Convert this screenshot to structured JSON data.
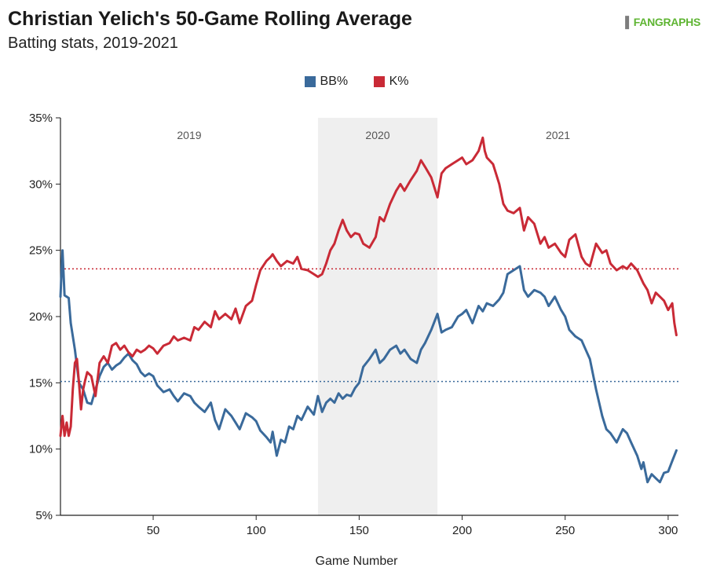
{
  "title": "Christian Yelich's 50-Game Rolling Average",
  "subtitle": "Batting stats, 2019-2021",
  "brand": {
    "mark": "▌",
    "name": "FANGRAPHS"
  },
  "colors": {
    "bb": "#3a6a9b",
    "k": "#c92a36",
    "shade": "#efefef",
    "axis": "#222222"
  },
  "chart_data": {
    "type": "line",
    "title": "Christian Yelich's 50-Game Rolling Average",
    "subtitle": "Batting stats, 2019-2021",
    "xlabel": "Game Number",
    "ylabel": "",
    "xlim": [
      0,
      305
    ],
    "ylim": [
      5,
      35
    ],
    "xticks": [
      50,
      100,
      150,
      200,
      250,
      300
    ],
    "yticks": [
      5,
      10,
      15,
      20,
      25,
      30,
      35
    ],
    "ytick_labels": [
      "5%",
      "10%",
      "15%",
      "20%",
      "25%",
      "30%",
      "35%"
    ],
    "grid": false,
    "legend": "top-center",
    "seasons": [
      {
        "label": "2019",
        "start": 0,
        "end": 130,
        "shaded": false
      },
      {
        "label": "2020",
        "start": 130,
        "end": 188,
        "shaded": true
      },
      {
        "label": "2021",
        "start": 188,
        "end": 305,
        "shaded": false
      }
    ],
    "reference_lines": [
      {
        "series": "BB%",
        "value": 15.1
      },
      {
        "series": "K%",
        "value": 23.6
      }
    ],
    "series": [
      {
        "name": "BB%",
        "color": "#3a6a9b",
        "x": [
          5,
          6,
          7,
          8,
          9,
          10,
          12,
          14,
          16,
          18,
          20,
          22,
          24,
          26,
          28,
          30,
          32,
          34,
          36,
          38,
          40,
          42,
          44,
          46,
          48,
          50,
          52,
          55,
          58,
          60,
          62,
          65,
          68,
          70,
          72,
          75,
          78,
          80,
          82,
          85,
          88,
          90,
          92,
          95,
          98,
          100,
          102,
          105,
          107,
          108,
          110,
          112,
          114,
          116,
          118,
          120,
          122,
          125,
          128,
          130,
          132,
          134,
          136,
          138,
          140,
          142,
          144,
          146,
          148,
          150,
          152,
          155,
          158,
          160,
          162,
          165,
          168,
          170,
          172,
          175,
          178,
          180,
          182,
          185,
          188,
          190,
          192,
          195,
          198,
          200,
          202,
          205,
          208,
          210,
          212,
          215,
          218,
          220,
          222,
          225,
          228,
          230,
          232,
          235,
          238,
          240,
          242,
          245,
          248,
          250,
          252,
          255,
          258,
          260,
          262,
          265,
          268,
          270,
          272,
          275,
          278,
          280,
          282,
          285,
          287,
          288,
          290,
          292,
          294,
          296,
          298,
          300,
          302,
          304
        ],
        "values": [
          21.5,
          25,
          21.6,
          21.5,
          21.4,
          19.5,
          17.5,
          15,
          14.5,
          13.5,
          13.4,
          14.5,
          15.5,
          16.2,
          16.5,
          16,
          16.3,
          16.5,
          16.9,
          17.2,
          16.7,
          16.4,
          15.8,
          15.5,
          15.7,
          15.5,
          14.8,
          14.3,
          14.5,
          14,
          13.6,
          14.2,
          14,
          13.5,
          13.2,
          12.8,
          13.5,
          12.2,
          11.5,
          13,
          12.5,
          12,
          11.5,
          12.7,
          12.4,
          12.1,
          11.4,
          10.9,
          10.5,
          11.3,
          9.5,
          10.7,
          10.5,
          11.7,
          11.5,
          12.5,
          12.2,
          13.2,
          12.6,
          14,
          12.8,
          13.5,
          13.8,
          13.5,
          14.2,
          13.8,
          14.1,
          14,
          14.6,
          15,
          16.2,
          16.8,
          17.5,
          16.5,
          16.8,
          17.5,
          17.8,
          17.2,
          17.5,
          16.8,
          16.5,
          17.5,
          18,
          19,
          20.2,
          18.8,
          19,
          19.2,
          20,
          20.2,
          20.5,
          19.5,
          20.8,
          20.4,
          21,
          20.8,
          21.3,
          21.8,
          23.2,
          23.5,
          23.8,
          22,
          21.5,
          22,
          21.8,
          21.5,
          20.8,
          21.5,
          20.5,
          20,
          19,
          18.5,
          18.2,
          17.5,
          16.8,
          14.5,
          12.5,
          11.5,
          11.2,
          10.5,
          11.5,
          11.2,
          10.5,
          9.5,
          8.5,
          9,
          7.5,
          8.1,
          7.8,
          7.5,
          8.2,
          8.3,
          9.1,
          9.9
        ]
      },
      {
        "name": "K%",
        "color": "#c92a36",
        "x": [
          5,
          6,
          7,
          8,
          9,
          10,
          11,
          12,
          13,
          14,
          15,
          16,
          17,
          18,
          20,
          22,
          24,
          26,
          28,
          30,
          32,
          34,
          36,
          38,
          40,
          42,
          44,
          46,
          48,
          50,
          52,
          55,
          58,
          60,
          62,
          65,
          68,
          70,
          72,
          75,
          78,
          80,
          82,
          85,
          88,
          90,
          92,
          95,
          98,
          100,
          102,
          105,
          107,
          108,
          110,
          112,
          115,
          118,
          120,
          122,
          125,
          128,
          130,
          132,
          134,
          136,
          138,
          140,
          142,
          144,
          146,
          148,
          150,
          152,
          155,
          158,
          160,
          162,
          165,
          168,
          170,
          172,
          175,
          178,
          180,
          182,
          185,
          188,
          190,
          192,
          195,
          198,
          200,
          202,
          205,
          208,
          210,
          211,
          212,
          215,
          218,
          220,
          222,
          225,
          228,
          230,
          232,
          235,
          238,
          240,
          242,
          245,
          248,
          250,
          252,
          255,
          258,
          260,
          262,
          265,
          268,
          270,
          272,
          275,
          278,
          280,
          282,
          285,
          288,
          290,
          292,
          294,
          296,
          298,
          300,
          302,
          303,
          304
        ],
        "values": [
          11,
          12.5,
          11,
          12,
          11,
          11.7,
          14.5,
          16.5,
          16.8,
          15,
          13,
          14.5,
          15.2,
          15.8,
          15.5,
          14,
          16.5,
          17,
          16.5,
          17.8,
          18,
          17.5,
          17.8,
          17.3,
          17,
          17.5,
          17.3,
          17.5,
          17.8,
          17.6,
          17.2,
          17.8,
          18,
          18.5,
          18.2,
          18.4,
          18.2,
          19.2,
          19,
          19.6,
          19.2,
          20.4,
          19.8,
          20.2,
          19.8,
          20.6,
          19.5,
          20.8,
          21.2,
          22.4,
          23.5,
          24.2,
          24.5,
          24.7,
          24.2,
          23.8,
          24.2,
          24,
          24.5,
          23.6,
          23.5,
          23.2,
          23,
          23.2,
          24,
          25,
          25.5,
          26.5,
          27.3,
          26.5,
          26,
          26.3,
          26.2,
          25.5,
          25.2,
          26,
          27.5,
          27.2,
          28.5,
          29.5,
          30,
          29.5,
          30.3,
          31,
          31.8,
          31.3,
          30.5,
          29,
          30.8,
          31.2,
          31.5,
          31.8,
          32,
          31.5,
          31.8,
          32.5,
          33.5,
          32.5,
          32,
          31.5,
          30,
          28.5,
          28,
          27.8,
          28.2,
          26.5,
          27.5,
          27,
          25.5,
          26,
          25.2,
          25.5,
          24.8,
          24.5,
          25.8,
          26.2,
          24.5,
          24,
          23.8,
          25.5,
          24.8,
          25,
          24,
          23.5,
          23.8,
          23.6,
          24,
          23.5,
          22.5,
          22,
          21,
          21.8,
          21.5,
          21.2,
          20.5,
          21,
          19.5,
          18.6
        ]
      }
    ]
  }
}
